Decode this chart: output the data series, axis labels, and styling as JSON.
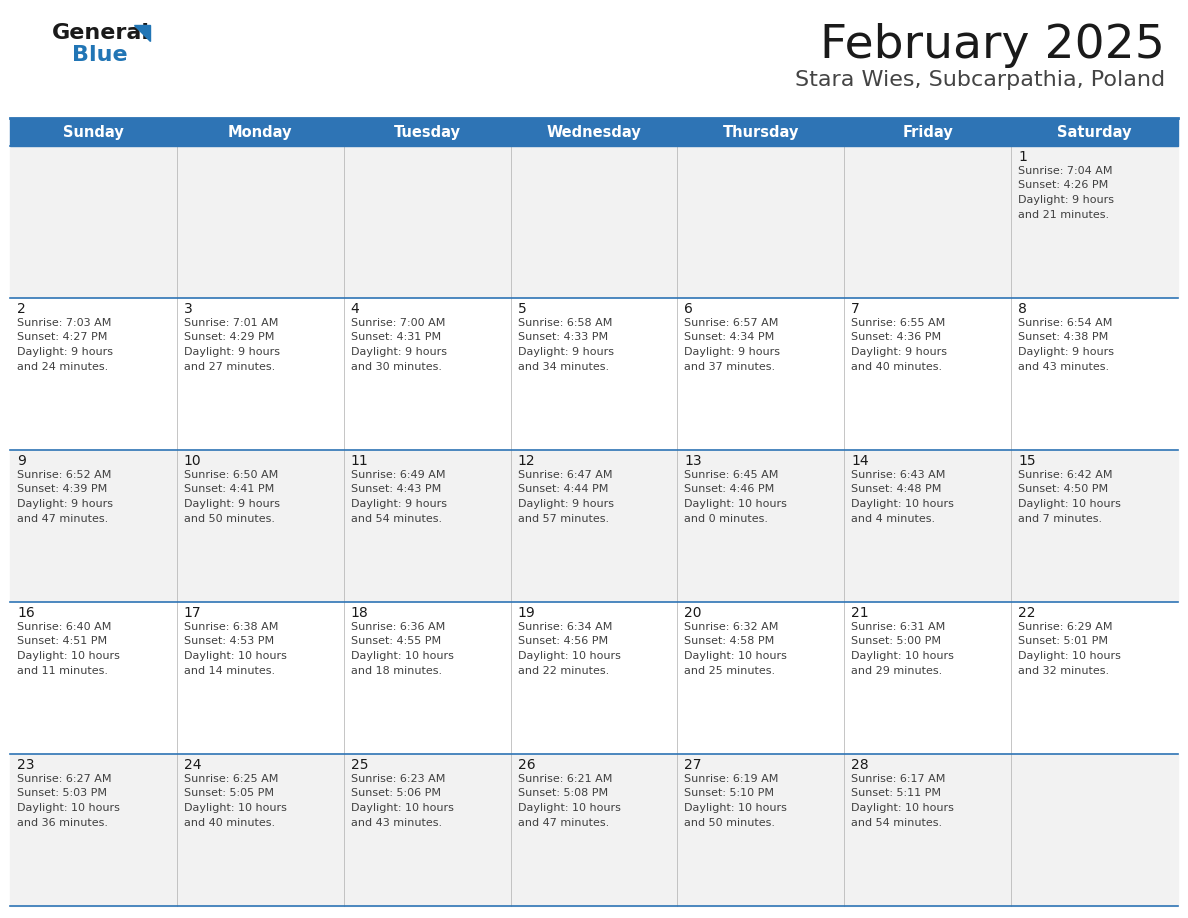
{
  "title": "February 2025",
  "subtitle": "Stara Wies, Subcarpathia, Poland",
  "header_bg": "#2E74B5",
  "header_text_color": "#FFFFFF",
  "cell_bg_gray": "#F2F2F2",
  "cell_bg_white": "#FFFFFF",
  "separator_color": "#2E74B5",
  "text_color": "#404040",
  "days_of_week": [
    "Sunday",
    "Monday",
    "Tuesday",
    "Wednesday",
    "Thursday",
    "Friday",
    "Saturday"
  ],
  "calendar": [
    [
      {
        "day": "",
        "sunrise": "",
        "sunset": "",
        "daylight": ""
      },
      {
        "day": "",
        "sunrise": "",
        "sunset": "",
        "daylight": ""
      },
      {
        "day": "",
        "sunrise": "",
        "sunset": "",
        "daylight": ""
      },
      {
        "day": "",
        "sunrise": "",
        "sunset": "",
        "daylight": ""
      },
      {
        "day": "",
        "sunrise": "",
        "sunset": "",
        "daylight": ""
      },
      {
        "day": "",
        "sunrise": "",
        "sunset": "",
        "daylight": ""
      },
      {
        "day": "1",
        "sunrise": "7:04 AM",
        "sunset": "4:26 PM",
        "daylight": "9 hours and 21 minutes."
      }
    ],
    [
      {
        "day": "2",
        "sunrise": "7:03 AM",
        "sunset": "4:27 PM",
        "daylight": "9 hours and 24 minutes."
      },
      {
        "day": "3",
        "sunrise": "7:01 AM",
        "sunset": "4:29 PM",
        "daylight": "9 hours and 27 minutes."
      },
      {
        "day": "4",
        "sunrise": "7:00 AM",
        "sunset": "4:31 PM",
        "daylight": "9 hours and 30 minutes."
      },
      {
        "day": "5",
        "sunrise": "6:58 AM",
        "sunset": "4:33 PM",
        "daylight": "9 hours and 34 minutes."
      },
      {
        "day": "6",
        "sunrise": "6:57 AM",
        "sunset": "4:34 PM",
        "daylight": "9 hours and 37 minutes."
      },
      {
        "day": "7",
        "sunrise": "6:55 AM",
        "sunset": "4:36 PM",
        "daylight": "9 hours and 40 minutes."
      },
      {
        "day": "8",
        "sunrise": "6:54 AM",
        "sunset": "4:38 PM",
        "daylight": "9 hours and 43 minutes."
      }
    ],
    [
      {
        "day": "9",
        "sunrise": "6:52 AM",
        "sunset": "4:39 PM",
        "daylight": "9 hours and 47 minutes."
      },
      {
        "day": "10",
        "sunrise": "6:50 AM",
        "sunset": "4:41 PM",
        "daylight": "9 hours and 50 minutes."
      },
      {
        "day": "11",
        "sunrise": "6:49 AM",
        "sunset": "4:43 PM",
        "daylight": "9 hours and 54 minutes."
      },
      {
        "day": "12",
        "sunrise": "6:47 AM",
        "sunset": "4:44 PM",
        "daylight": "9 hours and 57 minutes."
      },
      {
        "day": "13",
        "sunrise": "6:45 AM",
        "sunset": "4:46 PM",
        "daylight": "10 hours and 0 minutes."
      },
      {
        "day": "14",
        "sunrise": "6:43 AM",
        "sunset": "4:48 PM",
        "daylight": "10 hours and 4 minutes."
      },
      {
        "day": "15",
        "sunrise": "6:42 AM",
        "sunset": "4:50 PM",
        "daylight": "10 hours and 7 minutes."
      }
    ],
    [
      {
        "day": "16",
        "sunrise": "6:40 AM",
        "sunset": "4:51 PM",
        "daylight": "10 hours and 11 minutes."
      },
      {
        "day": "17",
        "sunrise": "6:38 AM",
        "sunset": "4:53 PM",
        "daylight": "10 hours and 14 minutes."
      },
      {
        "day": "18",
        "sunrise": "6:36 AM",
        "sunset": "4:55 PM",
        "daylight": "10 hours and 18 minutes."
      },
      {
        "day": "19",
        "sunrise": "6:34 AM",
        "sunset": "4:56 PM",
        "daylight": "10 hours and 22 minutes."
      },
      {
        "day": "20",
        "sunrise": "6:32 AM",
        "sunset": "4:58 PM",
        "daylight": "10 hours and 25 minutes."
      },
      {
        "day": "21",
        "sunrise": "6:31 AM",
        "sunset": "5:00 PM",
        "daylight": "10 hours and 29 minutes."
      },
      {
        "day": "22",
        "sunrise": "6:29 AM",
        "sunset": "5:01 PM",
        "daylight": "10 hours and 32 minutes."
      }
    ],
    [
      {
        "day": "23",
        "sunrise": "6:27 AM",
        "sunset": "5:03 PM",
        "daylight": "10 hours and 36 minutes."
      },
      {
        "day": "24",
        "sunrise": "6:25 AM",
        "sunset": "5:05 PM",
        "daylight": "10 hours and 40 minutes."
      },
      {
        "day": "25",
        "sunrise": "6:23 AM",
        "sunset": "5:06 PM",
        "daylight": "10 hours and 43 minutes."
      },
      {
        "day": "26",
        "sunrise": "6:21 AM",
        "sunset": "5:08 PM",
        "daylight": "10 hours and 47 minutes."
      },
      {
        "day": "27",
        "sunrise": "6:19 AM",
        "sunset": "5:10 PM",
        "daylight": "10 hours and 50 minutes."
      },
      {
        "day": "28",
        "sunrise": "6:17 AM",
        "sunset": "5:11 PM",
        "daylight": "10 hours and 54 minutes."
      },
      {
        "day": "",
        "sunrise": "",
        "sunset": "",
        "daylight": ""
      }
    ]
  ]
}
